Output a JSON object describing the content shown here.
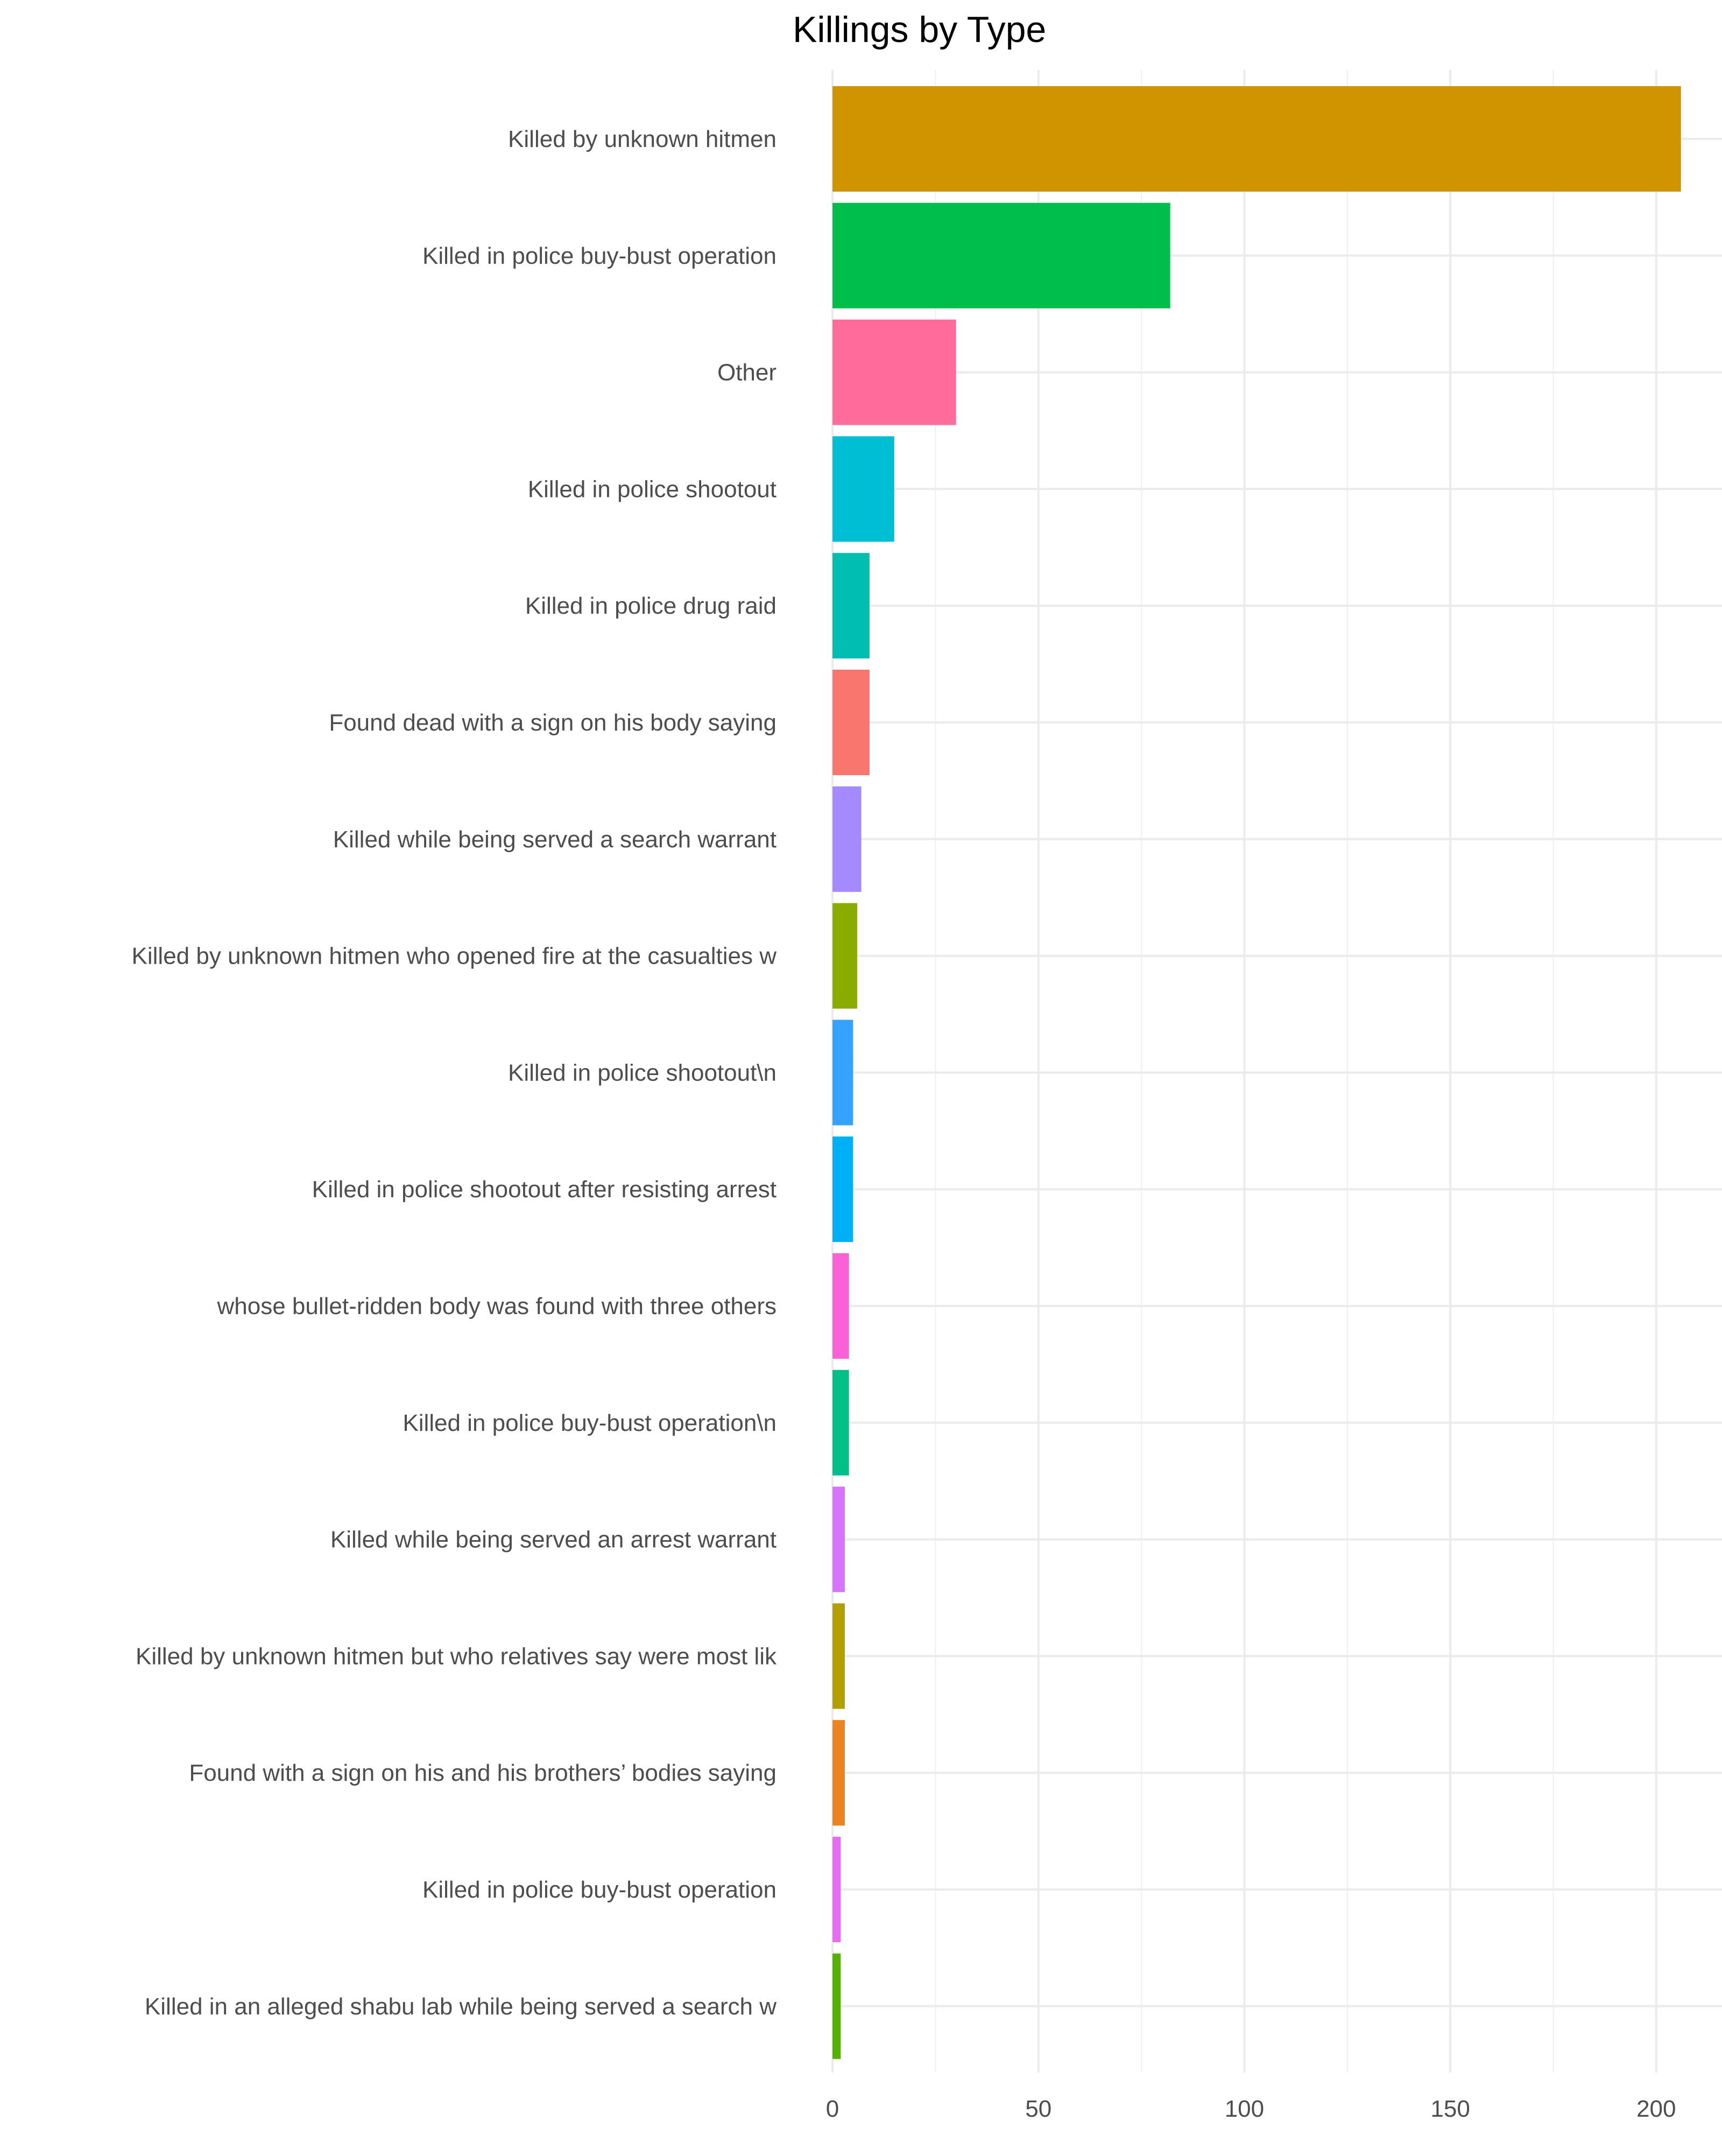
{
  "chart_data": {
    "type": "bar",
    "orientation": "horizontal",
    "title": "Killings by Type",
    "xlabel": "",
    "ylabel": "",
    "xlim": [
      0,
      215
    ],
    "x_ticks": [
      0,
      50,
      100,
      150,
      200
    ],
    "grid": true,
    "legend": "none",
    "categories": [
      "Killed by unknown hitmen",
      "Killed in police buy-bust operation",
      "Other",
      "Killed in police shootout",
      "Killed in police drug raid",
      "Found dead with a sign on his body saying",
      "Killed while being served a search warrant",
      "Killed by unknown hitmen who opened fire at the casualties w",
      "Killed in police shootout\\n",
      "Killed in police shootout after resisting arrest",
      "whose bullet-ridden body was found with three others",
      "Killed in police buy-bust operation\\n",
      "Killed while being served an arrest warrant",
      "Killed by unknown hitmen but who relatives say were most lik",
      "Found with a sign on his and his brothers’ bodies saying",
      "Killed in police buy-bust operation ",
      "Killed in an alleged shabu lab while being served a search w"
    ],
    "values": [
      206,
      82,
      30,
      15,
      9,
      9,
      7,
      6,
      5,
      5,
      4,
      4,
      3,
      3,
      3,
      2,
      2
    ],
    "colors": [
      "#CF9400",
      "#00BE4C",
      "#FF6C9C",
      "#00BFD5",
      "#00BFB0",
      "#F8766D",
      "#A58AFF",
      "#8AAB00",
      "#35A2FF",
      "#00B0F6",
      "#FB61D7",
      "#00C087",
      "#D774FE",
      "#B3A000",
      "#EC8220",
      "#E76BF3",
      "#53B400"
    ]
  }
}
